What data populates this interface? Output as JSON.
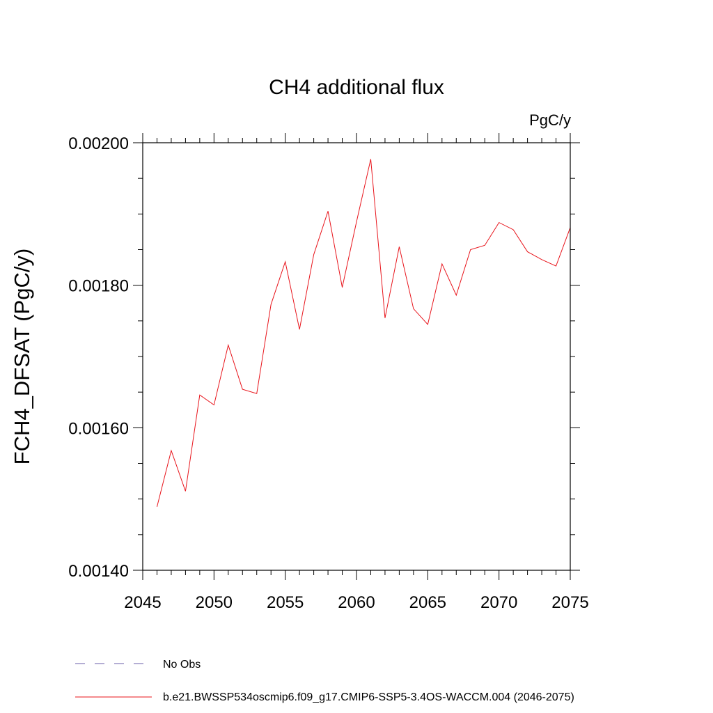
{
  "chart_data": {
    "type": "line",
    "title": "CH4 additional flux",
    "units_label": "PgC/y",
    "ylabel": "FCH4_DFSAT  (PgC/y)",
    "xlabel": "",
    "xlim": [
      2045,
      2075
    ],
    "ylim": [
      0.0014,
      0.002
    ],
    "x_ticks": [
      2045,
      2050,
      2055,
      2060,
      2065,
      2070,
      2075
    ],
    "x_tick_labels": [
      "2045",
      "2050",
      "2055",
      "2060",
      "2065",
      "2070",
      "2075"
    ],
    "y_ticks": [
      0.0014,
      0.0016,
      0.0018,
      0.002
    ],
    "y_tick_labels": [
      "0.00140",
      "0.00160",
      "0.00180",
      "0.00200"
    ],
    "y_minor_step": 5e-05,
    "x_minor_step": 1,
    "grid": false,
    "legend_position": "bottom",
    "series": [
      {
        "name": "b.e21.BWSSP534oscmip6.f09_g17.CMIP6-SSP5-3.4OS-WACCM.004 (2046-2075)",
        "color": "#e8141b",
        "style": "solid",
        "x": [
          2046,
          2047,
          2048,
          2049,
          2050,
          2051,
          2052,
          2053,
          2054,
          2055,
          2056,
          2057,
          2058,
          2059,
          2060,
          2061,
          2062,
          2063,
          2064,
          2065,
          2066,
          2067,
          2068,
          2069,
          2070,
          2071,
          2072,
          2073,
          2074,
          2075
        ],
        "y": [
          0.001489,
          0.001568,
          0.001511,
          0.001646,
          0.001632,
          0.001716,
          0.001654,
          0.001648,
          0.001773,
          0.001833,
          0.001738,
          0.001843,
          0.001904,
          0.001797,
          0.001889,
          0.001977,
          0.001754,
          0.001854,
          0.001767,
          0.001745,
          0.00183,
          0.001786,
          0.00185,
          0.001856,
          0.001888,
          0.001878,
          0.001847,
          0.001836,
          0.001827,
          0.001881
        ]
      }
    ],
    "legend": [
      {
        "label": "No Obs",
        "color": "#6a5ea8",
        "style": "dashed"
      },
      {
        "label": "b.e21.BWSSP534oscmip6.f09_g17.CMIP6-SSP5-3.4OS-WACCM.004 (2046-2075)",
        "color": "#e8141b",
        "style": "solid"
      }
    ]
  }
}
